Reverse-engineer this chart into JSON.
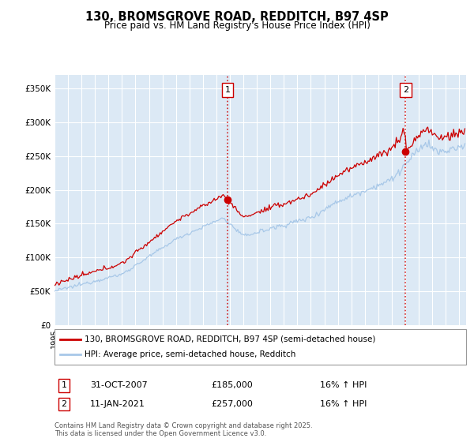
{
  "title": "130, BROMSGROVE ROAD, REDDITCH, B97 4SP",
  "subtitle": "Price paid vs. HM Land Registry's House Price Index (HPI)",
  "legend_line1": "130, BROMSGROVE ROAD, REDDITCH, B97 4SP (semi-detached house)",
  "legend_line2": "HPI: Average price, semi-detached house, Redditch",
  "footer": "Contains HM Land Registry data © Crown copyright and database right 2025.\nThis data is licensed under the Open Government Licence v3.0.",
  "ylim": [
    0,
    370000
  ],
  "yticks": [
    0,
    50000,
    100000,
    150000,
    200000,
    250000,
    300000,
    350000
  ],
  "ytick_labels": [
    "£0",
    "£50K",
    "£100K",
    "£150K",
    "£200K",
    "£250K",
    "£300K",
    "£350K"
  ],
  "xmin": 1995.0,
  "xmax": 2025.5,
  "bg_color": "#dce9f5",
  "grid_color": "#ffffff",
  "red_color": "#cc0000",
  "blue_color": "#a8c8e8",
  "marker1_x": 2007.83,
  "marker1_y": 185000,
  "marker2_x": 2021.03,
  "marker2_y": 257000,
  "marker1_label": "1",
  "marker2_label": "2",
  "table_row1": [
    "1",
    "31-OCT-2007",
    "£185,000",
    "16% ↑ HPI"
  ],
  "table_row2": [
    "2",
    "11-JAN-2021",
    "£257,000",
    "16% ↑ HPI"
  ]
}
